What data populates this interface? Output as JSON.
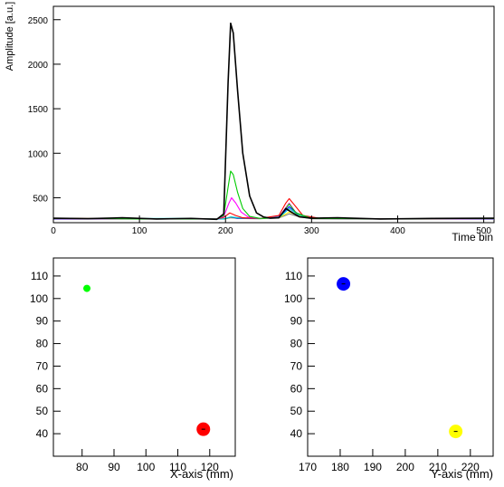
{
  "chart_data": [
    {
      "type": "line",
      "title": "",
      "xlabel": "Time bin",
      "ylabel": "Amplitude [a.u.]",
      "xlim": [
        0,
        512
      ],
      "ylim": [
        220,
        2650
      ],
      "xticks": [
        "0",
        "100",
        "200",
        "300",
        "400",
        "500"
      ],
      "yticks": [
        "500",
        "1000",
        "1500",
        "2000",
        "2500"
      ],
      "baseline": 270,
      "grid": false,
      "series": [
        {
          "color": "#000000",
          "x": [
            0,
            40,
            80,
            120,
            160,
            190,
            198,
            203,
            206,
            209,
            214,
            220,
            228,
            236,
            244,
            252,
            262,
            270,
            278,
            286,
            300,
            330,
            380,
            440,
            512
          ],
          "values": [
            270,
            265,
            275,
            262,
            268,
            258,
            320,
            1800,
            2460,
            2350,
            1700,
            1000,
            520,
            330,
            285,
            270,
            275,
            380,
            330,
            285,
            270,
            275,
            262,
            268,
            270
          ]
        },
        {
          "color": "#00cc00",
          "x": [
            0,
            100,
            190,
            198,
            203,
            206,
            209,
            214,
            220,
            228,
            240,
            262,
            274,
            282,
            300,
            380,
            512
          ],
          "values": [
            268,
            262,
            262,
            300,
            620,
            800,
            760,
            560,
            380,
            290,
            268,
            275,
            430,
            330,
            268,
            262,
            268
          ]
        },
        {
          "color": "#ff00ff",
          "x": [
            0,
            100,
            190,
            198,
            204,
            207,
            212,
            218,
            226,
            240,
            262,
            274,
            282,
            300,
            380,
            512
          ],
          "values": [
            265,
            262,
            262,
            290,
            440,
            500,
            440,
            340,
            285,
            268,
            280,
            440,
            330,
            268,
            262,
            265
          ]
        },
        {
          "color": "#ff0000",
          "x": [
            0,
            100,
            190,
            198,
            205,
            212,
            220,
            240,
            262,
            270,
            274,
            280,
            290,
            310,
            400,
            512
          ],
          "values": [
            270,
            262,
            262,
            280,
            330,
            300,
            275,
            268,
            300,
            440,
            490,
            420,
            300,
            268,
            262,
            270
          ]
        },
        {
          "color": "#00cccc",
          "x": [
            0,
            150,
            198,
            206,
            214,
            240,
            264,
            274,
            284,
            300,
            420,
            512
          ],
          "values": [
            265,
            268,
            262,
            285,
            275,
            268,
            290,
            380,
            310,
            268,
            262,
            265
          ]
        },
        {
          "color": "#0000ff",
          "x": [
            0,
            150,
            198,
            206,
            214,
            240,
            264,
            274,
            284,
            300,
            420,
            512
          ],
          "values": [
            262,
            262,
            262,
            282,
            270,
            266,
            300,
            400,
            320,
            266,
            262,
            262
          ]
        },
        {
          "color": "#ffee00",
          "x": [
            0,
            150,
            198,
            206,
            214,
            240,
            264,
            274,
            284,
            300,
            420,
            512
          ],
          "values": [
            260,
            265,
            262,
            278,
            270,
            266,
            285,
            340,
            300,
            266,
            262,
            260
          ]
        },
        {
          "color": "#808080",
          "x": [
            0,
            150,
            198,
            206,
            214,
            240,
            264,
            274,
            284,
            300,
            420,
            512
          ],
          "values": [
            262,
            262,
            262,
            275,
            268,
            264,
            280,
            320,
            290,
            264,
            262,
            262
          ]
        }
      ]
    },
    {
      "type": "scatter",
      "title": "",
      "xlabel": "X-axis (mm)",
      "ylabel": "",
      "xlim": [
        71,
        128
      ],
      "ylim": [
        30,
        118
      ],
      "xticks": [
        "80",
        "90",
        "100",
        "110",
        "120"
      ],
      "yticks": [
        "40",
        "50",
        "60",
        "70",
        "80",
        "90",
        "100",
        "110"
      ],
      "points": [
        {
          "x": 81.5,
          "y": 104.5,
          "color": "#00ff00",
          "size": "small"
        },
        {
          "x": 118,
          "y": 42,
          "color": "#ff0000",
          "size": "large"
        }
      ]
    },
    {
      "type": "scatter",
      "title": "",
      "xlabel": "Y-axis (mm)",
      "ylabel": "",
      "xlim": [
        170,
        227
      ],
      "ylim": [
        30,
        118
      ],
      "xticks": [
        "170",
        "180",
        "190",
        "200",
        "210",
        "220"
      ],
      "yticks": [
        "40",
        "50",
        "60",
        "70",
        "80",
        "90",
        "100",
        "110"
      ],
      "points": [
        {
          "x": 181,
          "y": 106.5,
          "color": "#0000ff",
          "size": "large"
        },
        {
          "x": 215.5,
          "y": 41,
          "color": "#ffff00",
          "size": "large"
        }
      ]
    }
  ]
}
